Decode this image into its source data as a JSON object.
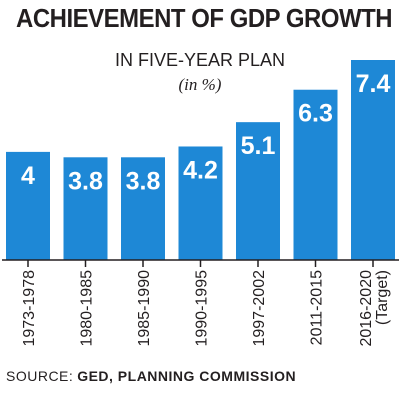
{
  "title": "ACHIEVEMENT OF GDP GROWTH",
  "subtitle": "IN FIVE-YEAR PLAN",
  "unit": "(in %)",
  "source": {
    "label": "SOURCE:",
    "value": "GED, PLANNING COMMISSION"
  },
  "colors": {
    "bar": "#1e88d6",
    "bar_text": "#ffffff",
    "axis": "#231f20",
    "text": "#231f20"
  },
  "chart_data": {
    "type": "bar",
    "title": "ACHIEVEMENT OF GDP GROWTH",
    "subtitle": "IN FIVE-YEAR PLAN",
    "ylabel": "(in %)",
    "categories": [
      [
        "1973-1978"
      ],
      [
        "1980-1985"
      ],
      [
        "1985-1990"
      ],
      [
        "1990-1995"
      ],
      [
        "1997-2002"
      ],
      [
        "2011-2015"
      ],
      [
        "2016-2020",
        "(Target)"
      ]
    ],
    "values": [
      4,
      3.8,
      3.8,
      4.2,
      5.1,
      6.3,
      7.4
    ],
    "data_labels": [
      "4",
      "3.8",
      "3.8",
      "4.2",
      "5.1",
      "6.3",
      "7.4"
    ],
    "ylim": [
      0,
      7.4
    ],
    "grid": false,
    "legend": "none"
  }
}
